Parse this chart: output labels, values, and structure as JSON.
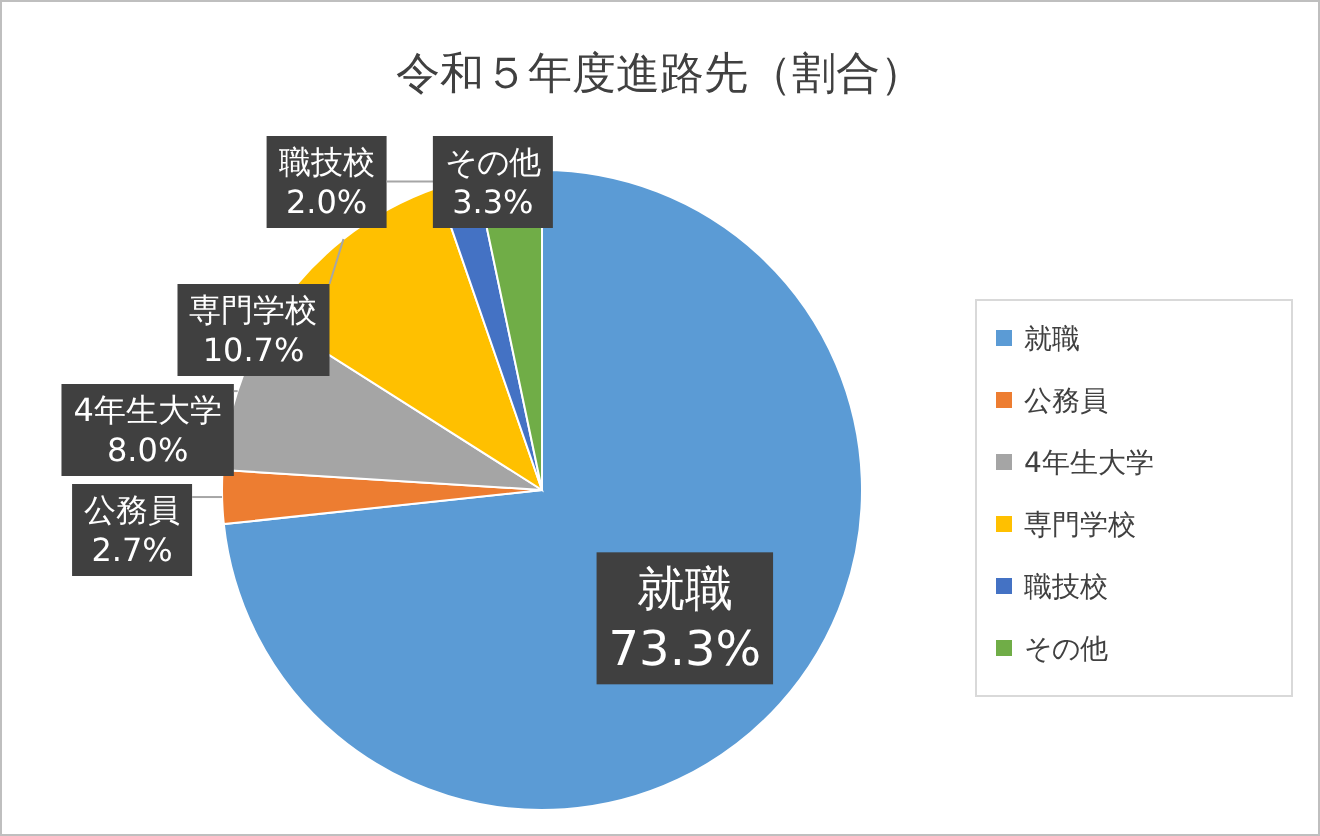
{
  "chart_data": {
    "type": "pie",
    "title": "令和５年度進路先（割合）",
    "categories": [
      "就職",
      "公務員",
      "4年生大学",
      "専門学校",
      "職技校",
      "その他"
    ],
    "values": [
      73.3,
      2.7,
      8.0,
      10.7,
      2.0,
      3.3
    ],
    "colors": [
      "#5b9bd5",
      "#ed7d31",
      "#a5a5a5",
      "#ffc000",
      "#4472c4",
      "#70ad47"
    ],
    "value_labels": [
      "73.3%",
      "2.7%",
      "8.0%",
      "10.7%",
      "2.0%",
      "3.3%"
    ],
    "legend": "right"
  }
}
